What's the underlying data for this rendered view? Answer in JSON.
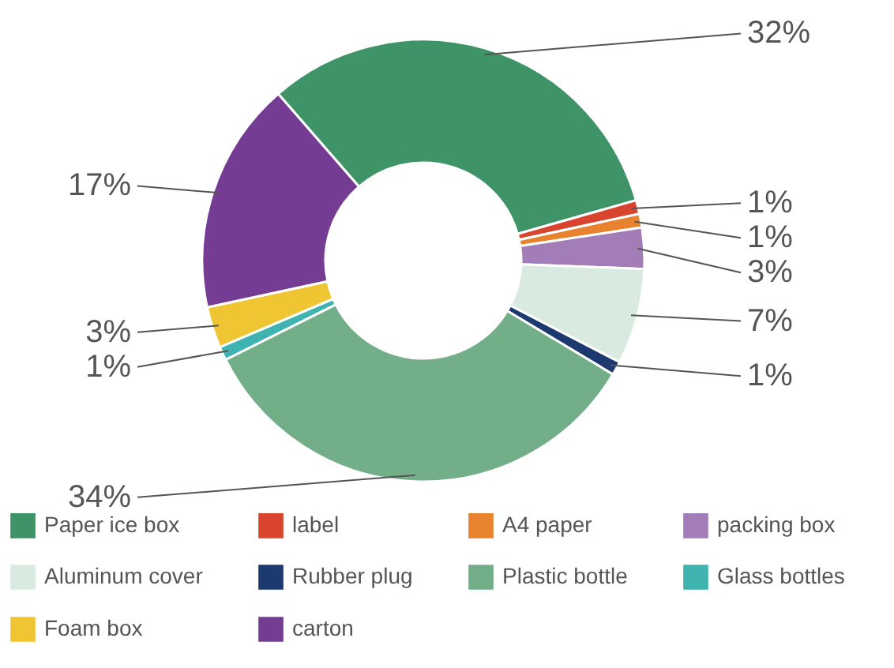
{
  "chart_data": {
    "type": "donut",
    "categories": [
      "Paper ice box",
      "label",
      "A4 paper",
      "packing box",
      "Aluminum cover",
      "Rubber plug",
      "Plastic bottle",
      "Glass bottles",
      "Foam box",
      "carton"
    ],
    "values": [
      32,
      1,
      1,
      3,
      7,
      1,
      34,
      1,
      3,
      17
    ],
    "colors": [
      "#3f9467",
      "#d9442f",
      "#e8822f",
      "#a27db8",
      "#d9ebe0",
      "#1d3a70",
      "#72ae88",
      "#3fb3b0",
      "#efc534",
      "#743c92"
    ],
    "value_labels": [
      "32%",
      "1%",
      "1%",
      "3%",
      "7%",
      "1%",
      "34%",
      "1%",
      "3%",
      "17%"
    ],
    "legend": "bottom"
  }
}
